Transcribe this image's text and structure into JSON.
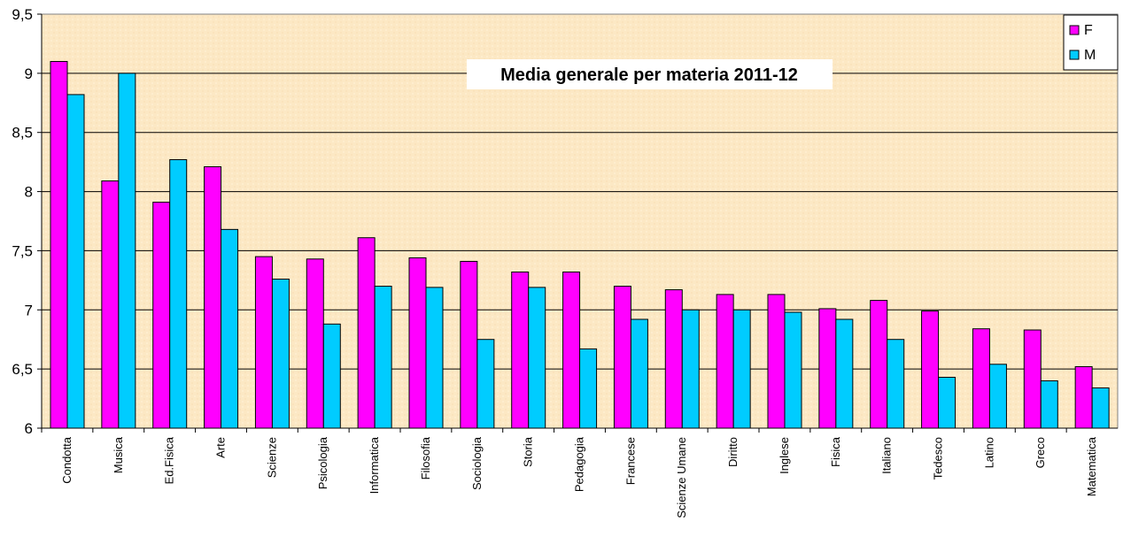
{
  "chart_data": {
    "type": "bar",
    "title": "Media generale per materia  2011-12",
    "xlabel": "",
    "ylabel": "",
    "ylim": [
      6,
      9.5
    ],
    "yticks": [
      "6",
      "6,5",
      "7",
      "7,5",
      "8",
      "8,5",
      "9",
      "9,5"
    ],
    "ytick_values": [
      6,
      6.5,
      7,
      7.5,
      8,
      8.5,
      9,
      9.5
    ],
    "grid": true,
    "legend_position": "top-right",
    "categories": [
      "Condotta",
      "Musica",
      "Ed.Fisica",
      "Arte",
      "Scienze",
      "Psicologia",
      "Informatica",
      "Filosofia",
      "Sociologia",
      "Storia",
      "Pedagogia",
      "Francese",
      "Scienze Umane",
      "Diritto",
      "Inglese",
      "Fisica",
      "Italiano",
      "Tedesco",
      "Latino",
      "Greco",
      "Matematica"
    ],
    "series": [
      {
        "name": "F",
        "color": "#FF00FF",
        "values": [
          9.1,
          8.09,
          7.91,
          8.21,
          7.45,
          7.43,
          7.61,
          7.44,
          7.41,
          7.32,
          7.32,
          7.2,
          7.17,
          7.13,
          7.13,
          7.01,
          7.08,
          6.99,
          6.84,
          6.83,
          6.52
        ]
      },
      {
        "name": "M",
        "color": "#00CCFF",
        "values": [
          8.82,
          9.0,
          8.27,
          7.68,
          7.26,
          6.88,
          7.2,
          7.19,
          6.75,
          7.19,
          6.67,
          6.92,
          7.0,
          7.0,
          6.98,
          6.92,
          6.75,
          6.43,
          6.54,
          6.4,
          6.34
        ]
      }
    ],
    "background_color": "#FCE8C4"
  }
}
